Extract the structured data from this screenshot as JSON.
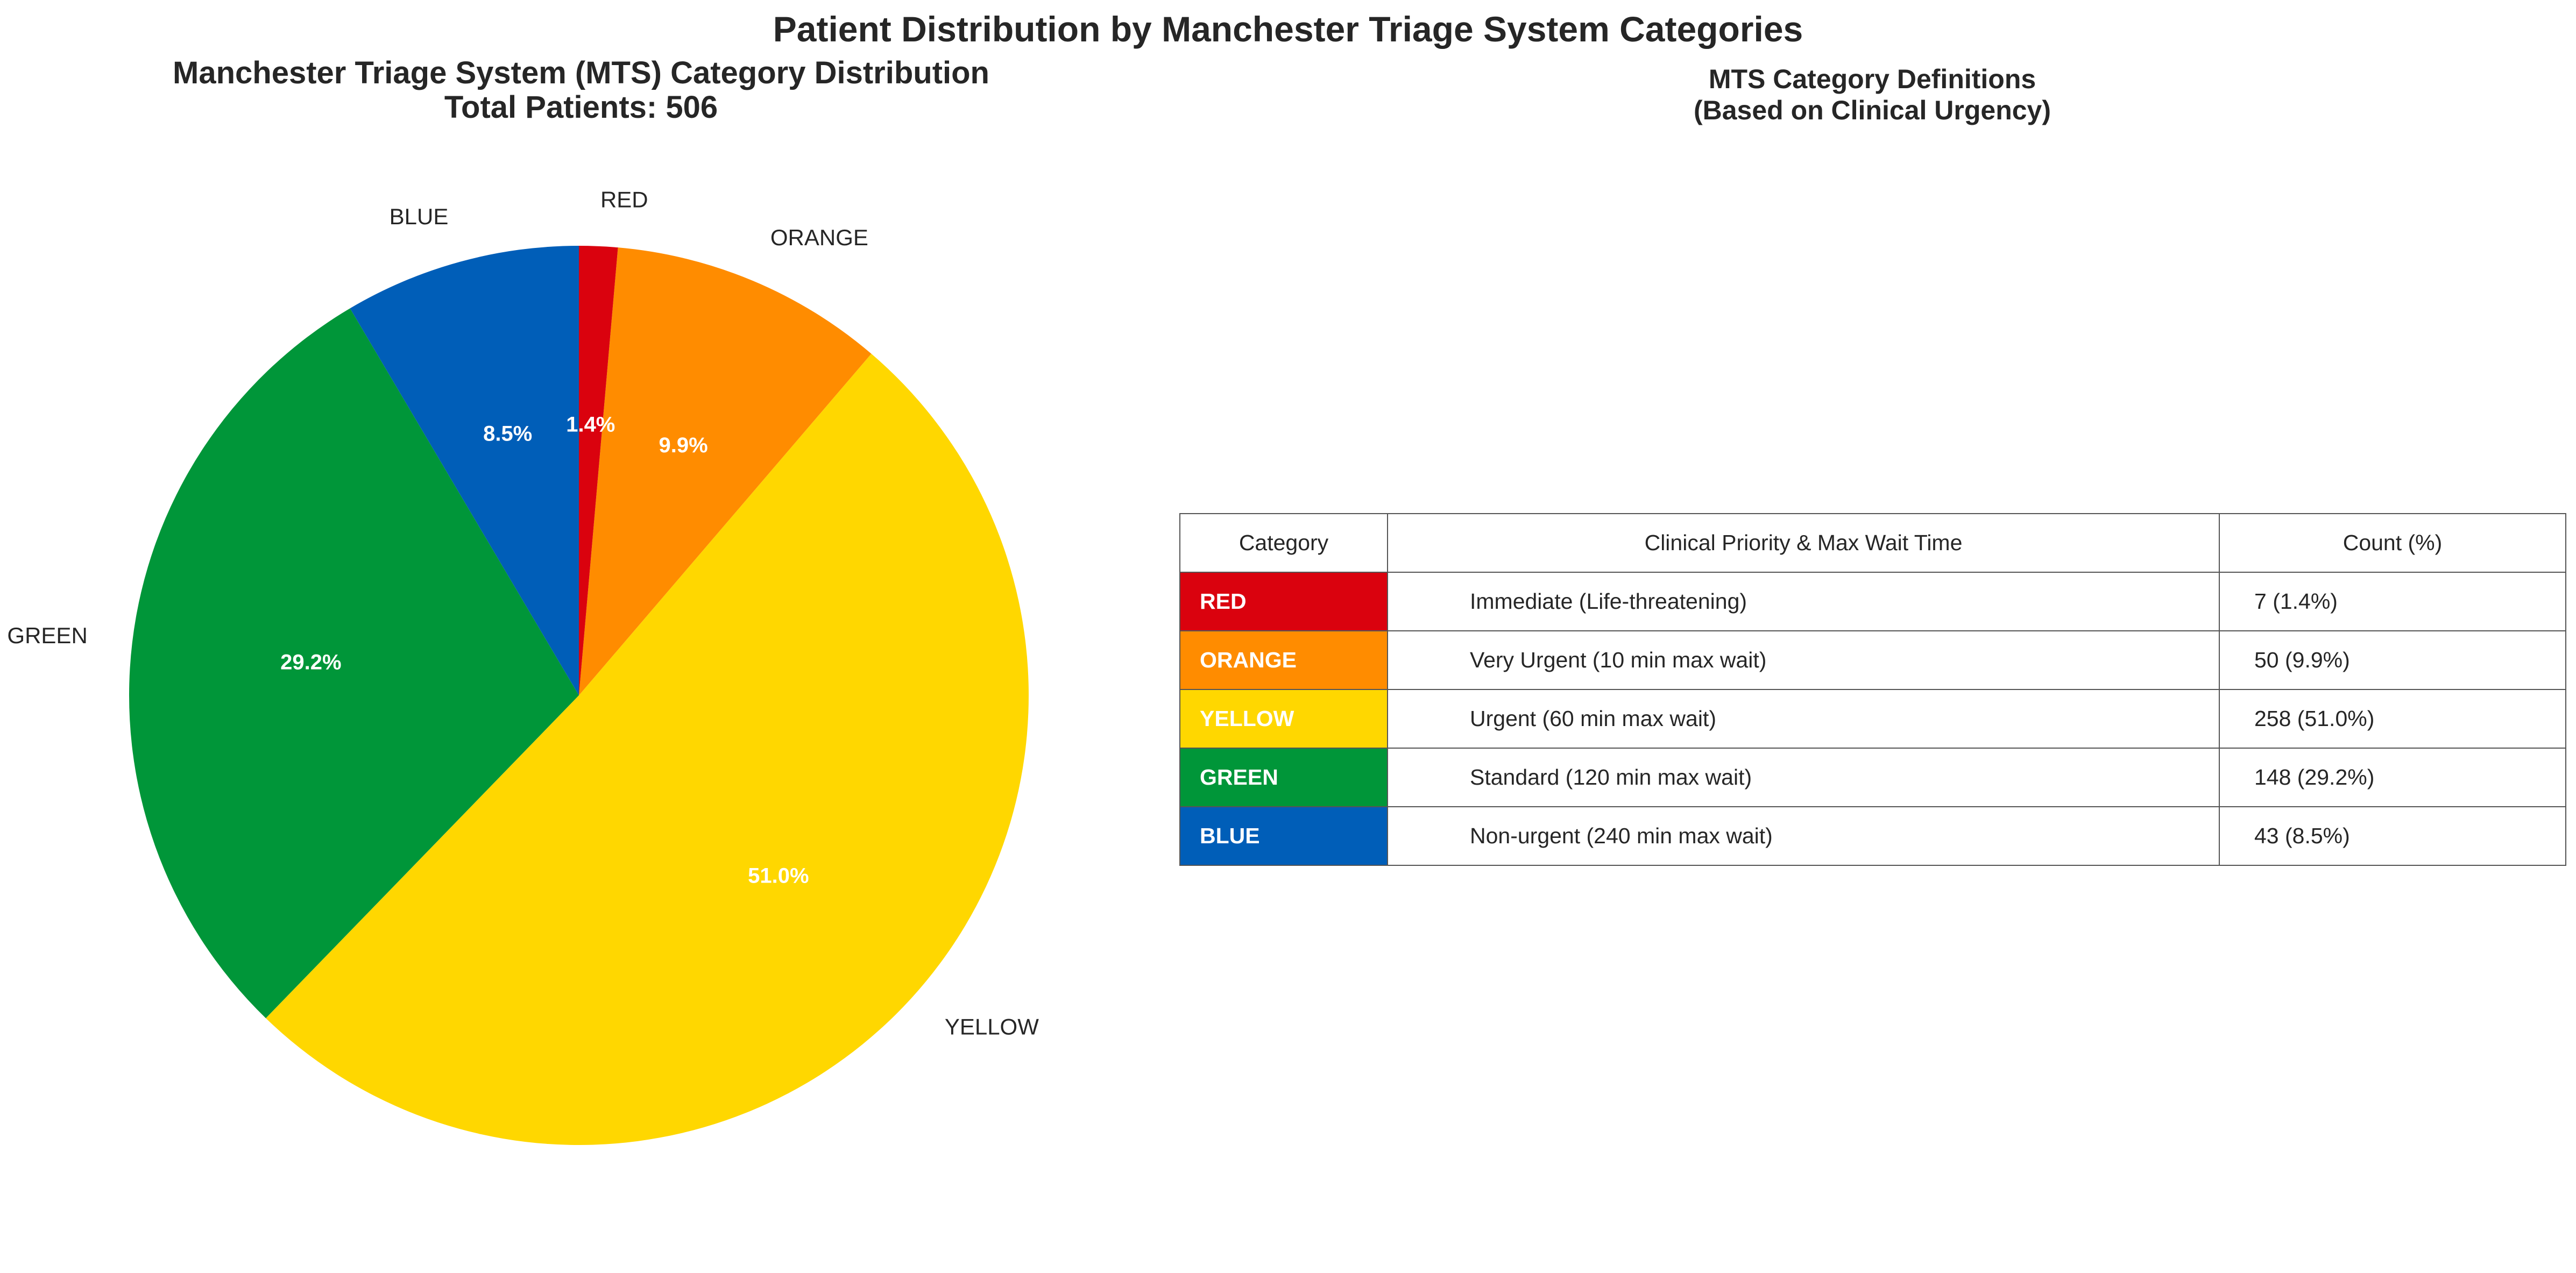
{
  "suptitle": "Patient Distribution by Manchester Triage System Categories",
  "chart_data": [
    {
      "type": "pie",
      "title_line1": "Manchester Triage System (MTS) Category Distribution",
      "title_line2": "Total Patients: 506",
      "start_angle_deg": 90,
      "direction": "counterclockwise",
      "slices": [
        {
          "label": "BLUE",
          "value": 43,
          "pct_label": "8.5%",
          "color": "#005EB8"
        },
        {
          "label": "GREEN",
          "value": 148,
          "pct_label": "29.2%",
          "color": "#009639"
        },
        {
          "label": "YELLOW",
          "value": 258,
          "pct_label": "51.0%",
          "color": "#FFD700"
        },
        {
          "label": "ORANGE",
          "value": 50,
          "pct_label": "9.9%",
          "color": "#FF8C00"
        },
        {
          "label": "RED",
          "value": 7,
          "pct_label": "1.4%",
          "color": "#DA020E"
        }
      ]
    },
    {
      "type": "table",
      "title_line1": "MTS Category Definitions",
      "title_line2": "(Based on Clinical Urgency)",
      "columns": [
        "Category",
        "Clinical Priority & Max Wait Time",
        "Count (%)"
      ],
      "rows": [
        {
          "category": "RED",
          "priority": "Immediate (Life-threatening)",
          "count": "7 (1.4%)",
          "color": "#DA020E"
        },
        {
          "category": "ORANGE",
          "priority": "Very Urgent (10 min max wait)",
          "count": "50 (9.9%)",
          "color": "#FF8C00"
        },
        {
          "category": "YELLOW",
          "priority": "Urgent (60 min max wait)",
          "count": "258 (51.0%)",
          "color": "#FFD700"
        },
        {
          "category": "GREEN",
          "priority": "Standard (120 min max wait)",
          "count": "148 (29.2%)",
          "color": "#009639"
        },
        {
          "category": "BLUE",
          "priority": "Non-urgent (240 min max wait)",
          "count": "43 (8.5%)",
          "color": "#005EB8"
        }
      ]
    }
  ]
}
